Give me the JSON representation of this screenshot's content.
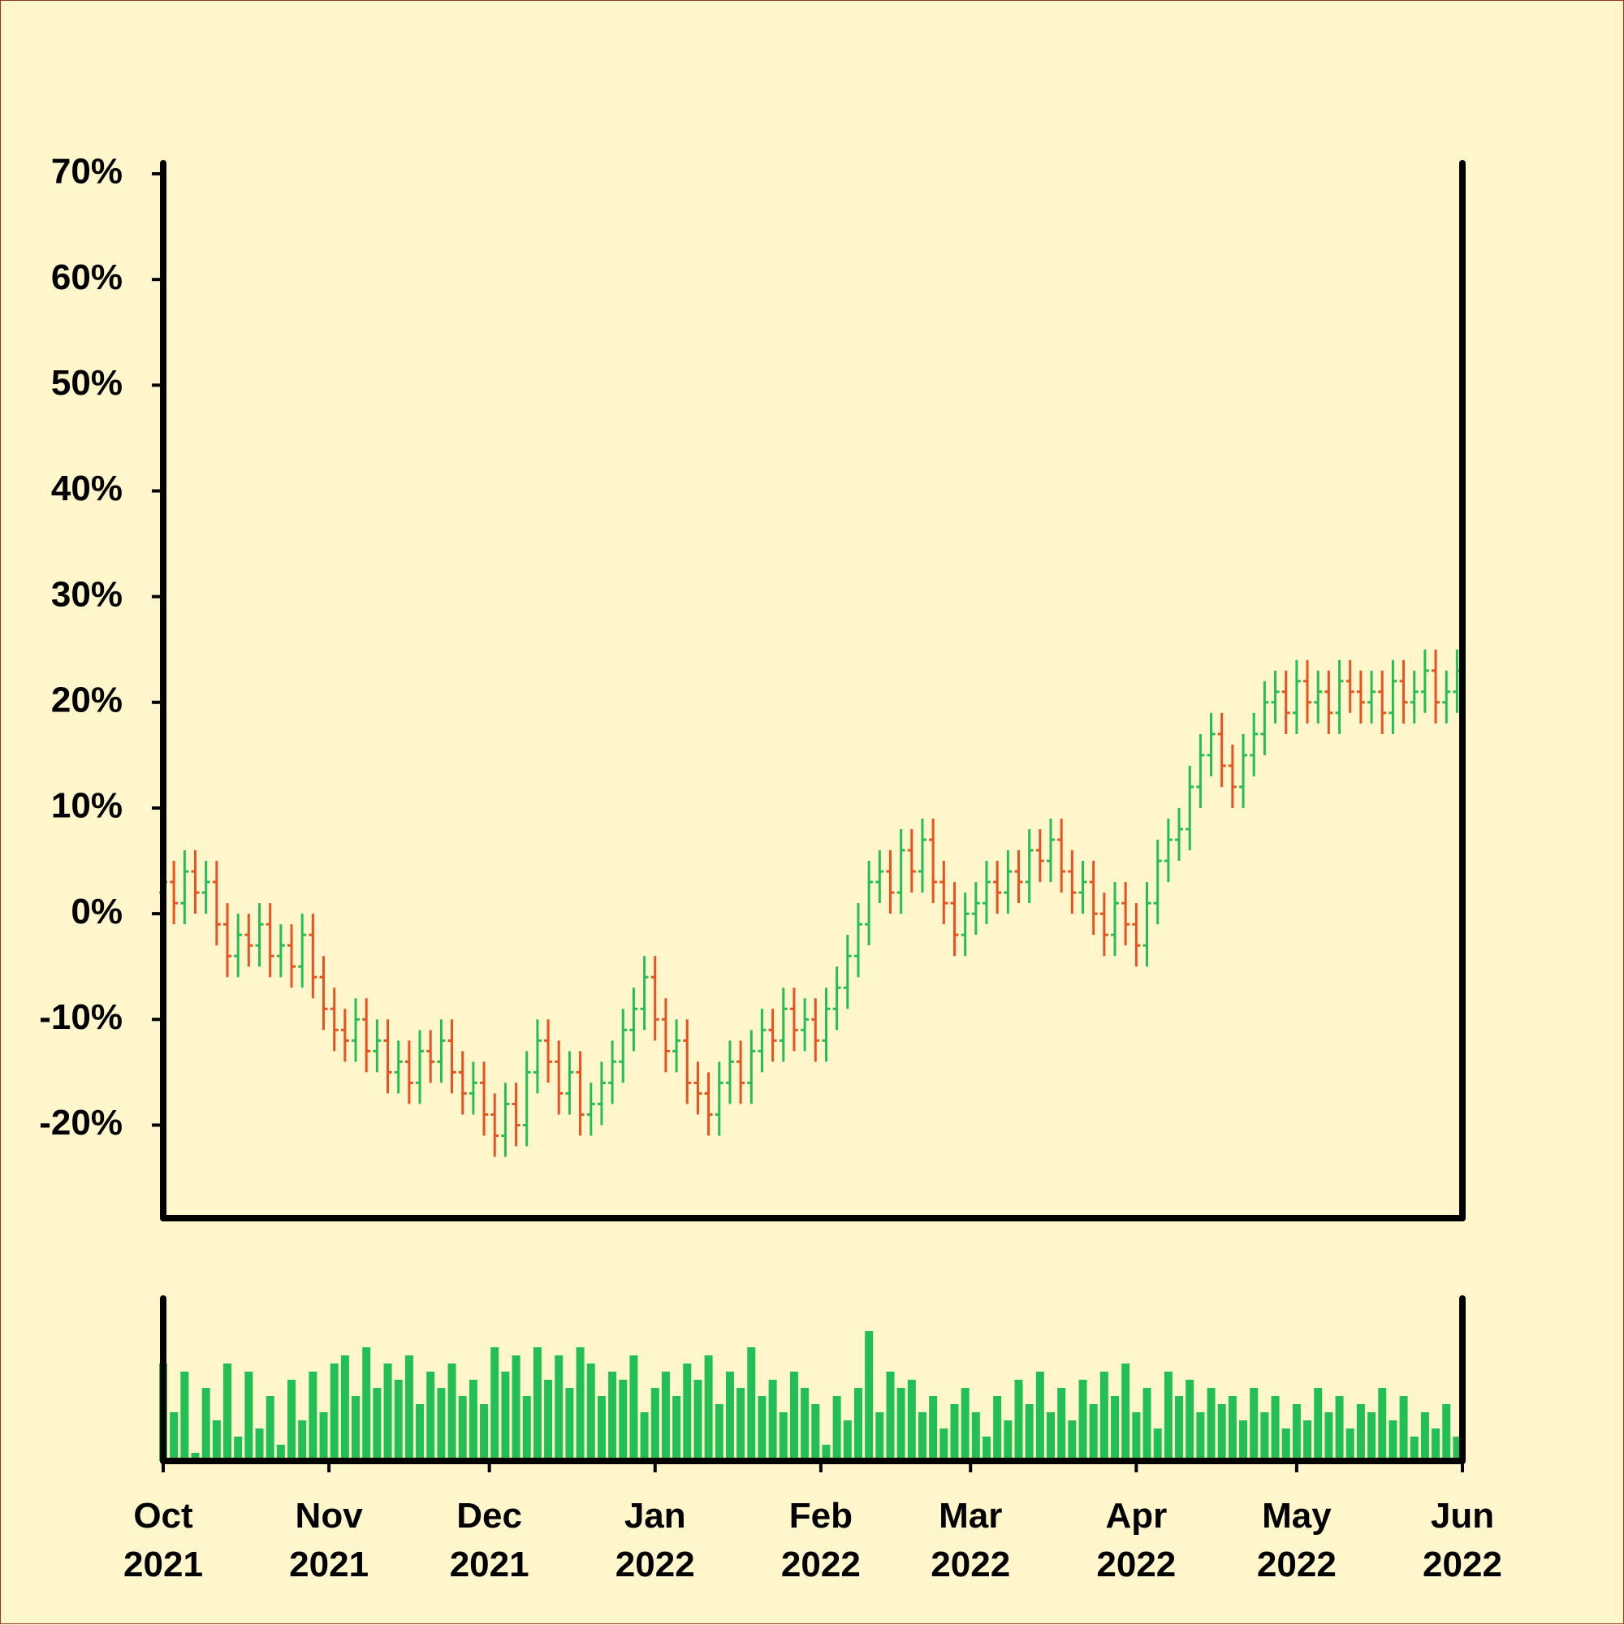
{
  "chart_data": {
    "type": "ohlc",
    "x": [
      0,
      2,
      4,
      6,
      8,
      10,
      12,
      14,
      16,
      18,
      20,
      22,
      24,
      26,
      28,
      30,
      32,
      34,
      36,
      38,
      40,
      42,
      44,
      46,
      48,
      50,
      52,
      54,
      56,
      58,
      60,
      62,
      64,
      66,
      68,
      70,
      72,
      74,
      76,
      78,
      80,
      82,
      84,
      86,
      88,
      90,
      92,
      94,
      96,
      98,
      100,
      102,
      104,
      106,
      108,
      110,
      112,
      114,
      116,
      118,
      120,
      122,
      124,
      126,
      128,
      130,
      132,
      134,
      136,
      138,
      140,
      142,
      144,
      146,
      148,
      150,
      152,
      154,
      156,
      158,
      160,
      162,
      164,
      166,
      168,
      170,
      172,
      174,
      176,
      178,
      180,
      182,
      184,
      186,
      188,
      190,
      192,
      194,
      196,
      198,
      200,
      202,
      204,
      206,
      208,
      210,
      212,
      214,
      216,
      218,
      220,
      222,
      224,
      226,
      228,
      230,
      232,
      234,
      236,
      238,
      240,
      242
    ],
    "open": [
      2,
      3,
      1,
      4,
      2,
      3,
      -1,
      -4,
      -2,
      -3,
      -1,
      -4,
      -3,
      -5,
      -2,
      -6,
      -9,
      -11,
      -12,
      -10,
      -13,
      -12,
      -15,
      -14,
      -16,
      -13,
      -14,
      -12,
      -15,
      -17,
      -16,
      -19,
      -21,
      -18,
      -20,
      -15,
      -12,
      -14,
      -17,
      -15,
      -19,
      -18,
      -16,
      -14,
      -11,
      -9,
      -6,
      -10,
      -13,
      -12,
      -16,
      -17,
      -19,
      -16,
      -14,
      -16,
      -13,
      -11,
      -12,
      -9,
      -11,
      -10,
      -12,
      -9,
      -7,
      -4,
      -1,
      3,
      4,
      2,
      6,
      4,
      7,
      3,
      1,
      -2,
      0,
      1,
      3,
      2,
      4,
      3,
      6,
      5,
      7,
      4,
      2,
      3,
      0,
      -2,
      1,
      -1,
      -3,
      1,
      5,
      7,
      8,
      12,
      15,
      17,
      14,
      12,
      15,
      17,
      20,
      21,
      19,
      22,
      20,
      21,
      19,
      22,
      21,
      20,
      21,
      19,
      22,
      20,
      21,
      23,
      20,
      21
    ],
    "high": [
      5,
      5,
      6,
      6,
      5,
      5,
      1,
      0,
      0,
      1,
      1,
      -1,
      -1,
      0,
      0,
      -4,
      -7,
      -9,
      -8,
      -8,
      -10,
      -10,
      -12,
      -12,
      -11,
      -11,
      -10,
      -10,
      -13,
      -14,
      -14,
      -17,
      -16,
      -16,
      -13,
      -10,
      -10,
      -12,
      -13,
      -13,
      -16,
      -14,
      -12,
      -9,
      -7,
      -4,
      -4,
      -8,
      -10,
      -10,
      -14,
      -15,
      -14,
      -12,
      -12,
      -11,
      -9,
      -9,
      -7,
      -7,
      -8,
      -8,
      -7,
      -5,
      -2,
      1,
      5,
      6,
      6,
      8,
      8,
      9,
      9,
      5,
      3,
      2,
      3,
      5,
      5,
      6,
      6,
      8,
      8,
      9,
      9,
      6,
      5,
      5,
      2,
      3,
      3,
      1,
      3,
      7,
      9,
      10,
      14,
      17,
      19,
      19,
      16,
      17,
      19,
      22,
      23,
      23,
      24,
      24,
      23,
      23,
      24,
      24,
      23,
      23,
      23,
      24,
      24,
      23,
      25,
      25,
      23,
      25
    ],
    "low": [
      0,
      -1,
      -1,
      0,
      0,
      -3,
      -6,
      -6,
      -5,
      -5,
      -6,
      -6,
      -7,
      -7,
      -8,
      -11,
      -13,
      -14,
      -14,
      -15,
      -15,
      -17,
      -17,
      -18,
      -18,
      -16,
      -16,
      -17,
      -19,
      -19,
      -21,
      -23,
      -23,
      -22,
      -22,
      -17,
      -16,
      -19,
      -19,
      -21,
      -21,
      -20,
      -18,
      -16,
      -13,
      -11,
      -12,
      -15,
      -15,
      -18,
      -19,
      -21,
      -21,
      -18,
      -18,
      -18,
      -15,
      -14,
      -14,
      -13,
      -13,
      -14,
      -14,
      -11,
      -9,
      -6,
      -3,
      1,
      0,
      0,
      2,
      2,
      1,
      -1,
      -4,
      -4,
      -2,
      -1,
      0,
      0,
      1,
      1,
      3,
      3,
      2,
      0,
      0,
      -2,
      -4,
      -4,
      -3,
      -5,
      -5,
      -1,
      3,
      5,
      6,
      10,
      13,
      12,
      10,
      10,
      13,
      15,
      18,
      17,
      17,
      18,
      18,
      17,
      17,
      19,
      18,
      18,
      17,
      17,
      18,
      18,
      19,
      18,
      18,
      19
    ],
    "close": [
      3,
      1,
      4,
      2,
      3,
      -1,
      -4,
      -2,
      -3,
      -1,
      -4,
      -3,
      -5,
      -2,
      -6,
      -9,
      -11,
      -12,
      -10,
      -13,
      -12,
      -15,
      -14,
      -16,
      -13,
      -14,
      -12,
      -15,
      -17,
      -16,
      -19,
      -21,
      -18,
      -20,
      -15,
      -12,
      -14,
      -17,
      -15,
      -19,
      -18,
      -16,
      -14,
      -11,
      -9,
      -6,
      -10,
      -13,
      -12,
      -16,
      -17,
      -19,
      -16,
      -14,
      -16,
      -13,
      -11,
      -12,
      -9,
      -11,
      -10,
      -12,
      -9,
      -7,
      -4,
      -1,
      3,
      4,
      2,
      6,
      4,
      7,
      3,
      1,
      -2,
      0,
      1,
      3,
      2,
      4,
      3,
      6,
      5,
      7,
      4,
      2,
      3,
      0,
      -2,
      1,
      -1,
      -3,
      1,
      5,
      7,
      8,
      12,
      15,
      17,
      14,
      12,
      15,
      17,
      20,
      21,
      19,
      22,
      20,
      21,
      19,
      22,
      21,
      20,
      21,
      19,
      22,
      20,
      21,
      23,
      20,
      21,
      23
    ],
    "up_color": "#22bf55",
    "down_color": "#e8521f",
    "xlim": [
      0,
      243
    ],
    "xticks": [
      {
        "value": 0,
        "label": "Oct\n2021"
      },
      {
        "value": 31,
        "label": "Nov\n2021"
      },
      {
        "value": 61,
        "label": "Dec\n2021"
      },
      {
        "value": 92,
        "label": "Jan\n2022"
      },
      {
        "value": 123,
        "label": "Feb\n2022"
      },
      {
        "value": 151,
        "label": "Mar\n2022"
      },
      {
        "value": 182,
        "label": "Apr\n2022"
      },
      {
        "value": 212,
        "label": "May\n2022"
      },
      {
        "value": 243,
        "label": "Jun\n2022"
      }
    ],
    "ylim": [
      -28.8,
      71
    ],
    "yticks": [
      {
        "value": -20,
        "label": "-20%"
      },
      {
        "value": -10,
        "label": "-10%"
      },
      {
        "value": 0,
        "label": "0%"
      },
      {
        "value": 10,
        "label": "10%"
      },
      {
        "value": 20,
        "label": "20%"
      },
      {
        "value": 30,
        "label": "30%"
      },
      {
        "value": 40,
        "label": "40%"
      },
      {
        "value": 50,
        "label": "50%"
      },
      {
        "value": 60,
        "label": "60%"
      },
      {
        "value": 70,
        "label": "70%"
      }
    ],
    "volume": {
      "color": "#22bf55",
      "ylim": [
        0,
        100
      ],
      "values": [
        60,
        30,
        55,
        5,
        45,
        25,
        60,
        15,
        55,
        20,
        40,
        10,
        50,
        25,
        55,
        30,
        60,
        65,
        40,
        70,
        45,
        60,
        50,
        65,
        35,
        55,
        45,
        60,
        40,
        50,
        35,
        70,
        55,
        65,
        40,
        70,
        50,
        65,
        45,
        70,
        60,
        40,
        55,
        50,
        65,
        30,
        45,
        55,
        40,
        60,
        50,
        65,
        35,
        55,
        45,
        70,
        40,
        50,
        30,
        55,
        45,
        35,
        10,
        40,
        25,
        45,
        80,
        30,
        55,
        45,
        50,
        30,
        40,
        20,
        35,
        45,
        30,
        15,
        40,
        25,
        50,
        35,
        55,
        30,
        45,
        25,
        50,
        35,
        55,
        40,
        60,
        30,
        45,
        20,
        55,
        40,
        50,
        30,
        45,
        35,
        40,
        25,
        45,
        30,
        40,
        20,
        35,
        25,
        45,
        30,
        40,
        20,
        35,
        30,
        45,
        25,
        40,
        15,
        30,
        20,
        35,
        15
      ]
    }
  }
}
